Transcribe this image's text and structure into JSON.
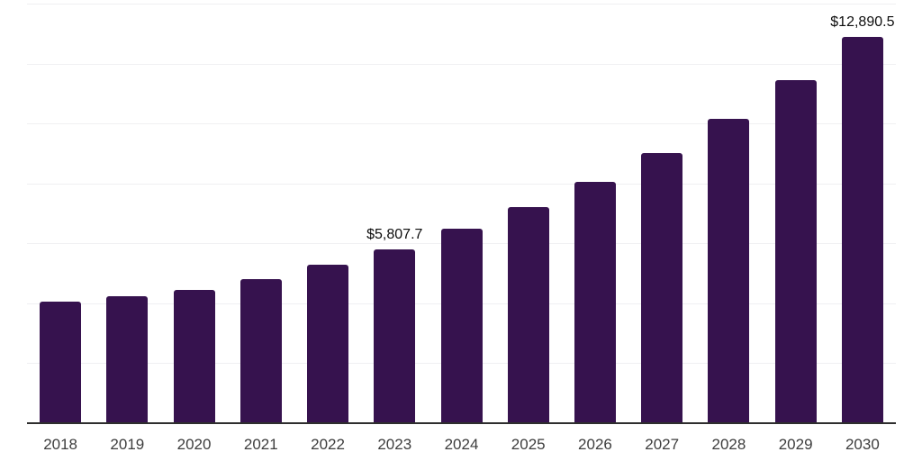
{
  "chart_data": {
    "type": "bar",
    "title": "",
    "xlabel": "",
    "ylabel": "",
    "categories": [
      "2018",
      "2019",
      "2020",
      "2021",
      "2022",
      "2023",
      "2024",
      "2025",
      "2026",
      "2027",
      "2028",
      "2029",
      "2030"
    ],
    "values": [
      4050,
      4230,
      4440,
      4800,
      5280,
      5807.7,
      6480,
      7200,
      8050,
      9000,
      10150,
      11440,
      12890.5
    ],
    "point_labels": [
      "",
      "",
      "",
      "",
      "",
      "$5,807.7",
      "",
      "",
      "",
      "",
      "",
      "",
      "$12,890.5"
    ],
    "ylim": [
      0,
      14000
    ],
    "grid_step": 2000,
    "grid": "horizontal",
    "legend_position": "none",
    "colors": {
      "bar": "#36124e",
      "gridline": "#f0f0f2",
      "axis_line": "#2e2e2e",
      "tick_label": "#3d3d3d",
      "value_label": "#0d0d0d",
      "background": "#ffffff"
    }
  }
}
